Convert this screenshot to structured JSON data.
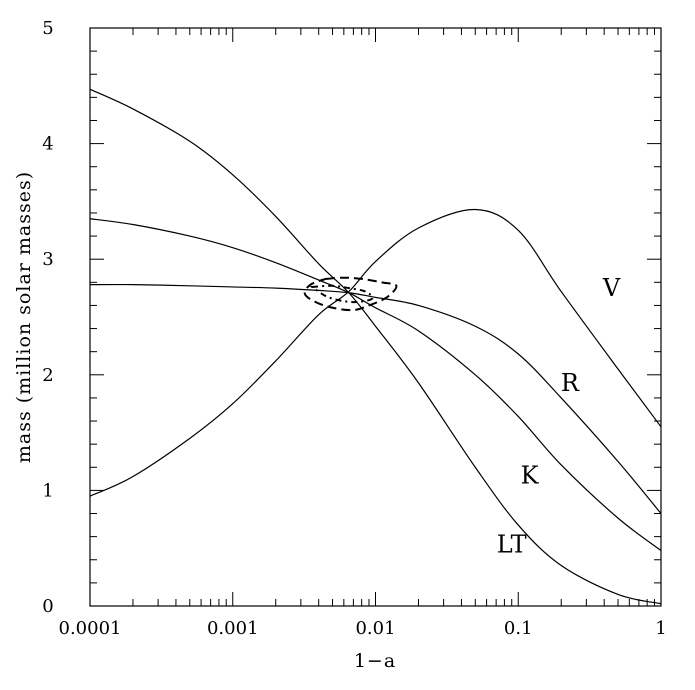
{
  "chart_data": {
    "type": "line",
    "xlabel": "1−a",
    "ylabel": "mass (million solar masses)",
    "x_scale": "log",
    "xlim": [
      0.0001,
      1
    ],
    "ylim": [
      0,
      5
    ],
    "x_ticks": [
      "0.0001",
      "0.001",
      "0.01",
      "0.1",
      "1"
    ],
    "x_tick_values": [
      0.0001,
      0.001,
      0.01,
      0.1,
      1
    ],
    "y_ticks": [
      "0",
      "1",
      "2",
      "3",
      "4",
      "5"
    ],
    "y_tick_values": [
      0,
      1,
      2,
      3,
      4,
      5
    ],
    "grid": false,
    "colors": {
      "line": "#000000",
      "background": "#ffffff"
    },
    "series": [
      {
        "name": "V",
        "x": [
          0.0001,
          0.0002,
          0.0005,
          0.001,
          0.002,
          0.004,
          0.0065,
          0.01,
          0.02,
          0.05,
          0.1,
          0.2,
          0.5,
          1
        ],
        "y": [
          0.95,
          1.12,
          1.45,
          1.75,
          2.12,
          2.52,
          2.72,
          2.98,
          3.27,
          3.43,
          3.25,
          2.72,
          2.05,
          1.55
        ],
        "label_x": 0.45,
        "label_y": 2.75
      },
      {
        "name": "R",
        "x": [
          0.0001,
          0.0002,
          0.0005,
          0.001,
          0.002,
          0.004,
          0.0065,
          0.01,
          0.02,
          0.05,
          0.1,
          0.2,
          0.5,
          1
        ],
        "y": [
          2.78,
          2.78,
          2.77,
          2.76,
          2.75,
          2.73,
          2.71,
          2.67,
          2.6,
          2.42,
          2.18,
          1.8,
          1.25,
          0.8
        ],
        "label_x": 0.23,
        "label_y": 1.93
      },
      {
        "name": "K",
        "x": [
          0.0001,
          0.0002,
          0.0005,
          0.001,
          0.002,
          0.004,
          0.0065,
          0.01,
          0.02,
          0.05,
          0.1,
          0.2,
          0.5,
          1
        ],
        "y": [
          3.35,
          3.3,
          3.2,
          3.1,
          2.97,
          2.82,
          2.71,
          2.58,
          2.38,
          2.0,
          1.64,
          1.22,
          0.76,
          0.48
        ],
        "label_x": 0.12,
        "label_y": 1.13
      },
      {
        "name": "LT",
        "x": [
          0.0001,
          0.0002,
          0.0005,
          0.001,
          0.002,
          0.004,
          0.0065,
          0.01,
          0.02,
          0.05,
          0.1,
          0.2,
          0.5,
          1
        ],
        "y": [
          4.47,
          4.3,
          4.02,
          3.73,
          3.37,
          2.96,
          2.71,
          2.42,
          1.93,
          1.2,
          0.7,
          0.35,
          0.1,
          0.02
        ],
        "label_x": 0.09,
        "label_y": 0.53
      }
    ],
    "contours": [
      {
        "style": "dashed",
        "x": [
          0.0045,
          0.006,
          0.008,
          0.011,
          0.014,
          0.012,
          0.009,
          0.007,
          0.005,
          0.0038,
          0.0032,
          0.0035,
          0.0045
        ],
        "y": [
          2.83,
          2.84,
          2.83,
          2.8,
          2.77,
          2.67,
          2.6,
          2.56,
          2.58,
          2.63,
          2.7,
          2.78,
          2.83
        ]
      },
      {
        "style": "dash-dot",
        "x": [
          0.0036,
          0.005,
          0.0065,
          0.0085,
          0.0095,
          0.0075,
          0.0058,
          0.0045,
          0.0036
        ],
        "y": [
          2.76,
          2.77,
          2.75,
          2.72,
          2.66,
          2.63,
          2.64,
          2.68,
          2.76
        ]
      }
    ]
  }
}
